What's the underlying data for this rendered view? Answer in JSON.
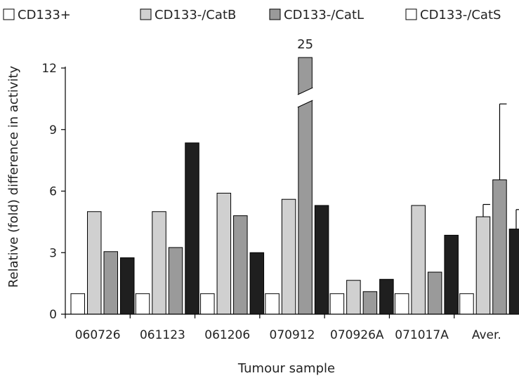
{
  "chart_data": {
    "type": "bar",
    "categories": [
      "060726",
      "061123",
      "061206",
      "070912",
      "070926A",
      "071017A",
      "Aver."
    ],
    "series": [
      {
        "name": "CD133+",
        "values": [
          1,
          1,
          1,
          1,
          1,
          1,
          1
        ],
        "color": "#ffffff"
      },
      {
        "name": "CD133-/CatB",
        "values": [
          5.0,
          5.0,
          5.9,
          5.6,
          1.65,
          5.3,
          4.75
        ],
        "color": "#d0d0d0"
      },
      {
        "name": "CD133-/CatL",
        "values": [
          3.05,
          3.25,
          4.8,
          25,
          1.1,
          2.05,
          6.55
        ],
        "color": "#9a9a9a"
      },
      {
        "name": "CD133-/CatS",
        "values": [
          2.75,
          8.35,
          3.0,
          5.3,
          1.7,
          3.85,
          4.15
        ],
        "color": "#1f1f1f"
      }
    ],
    "error_bars": {
      "category": "Aver.",
      "upper": {
        "CD133-/CatB": 5.35,
        "CD133-/CatL": 10.25,
        "CD133-/CatS": 5.1
      }
    },
    "axis_break": {
      "series": "CD133-/CatL",
      "category": "070912",
      "label": "25"
    },
    "xlabel": "Tumour sample",
    "ylabel": "Relative (fold) difference in activity",
    "ylim": [
      0,
      12
    ],
    "yticks": [
      "0",
      "3",
      "6",
      "9",
      "12"
    ],
    "legend_position": "top",
    "grid": false
  }
}
